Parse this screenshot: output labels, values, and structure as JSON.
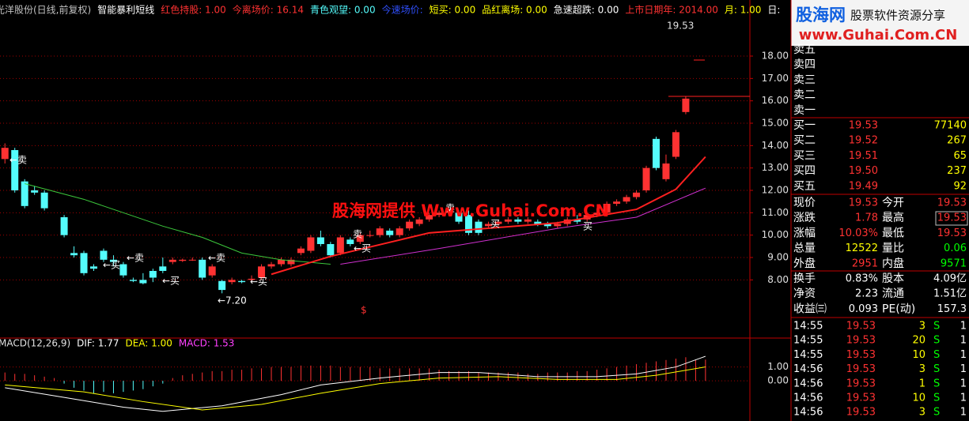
{
  "header": {
    "items": [
      "光洋股份(日线,前复权)",
      "智能暴利短线",
      "红色持股: 1.00",
      "今离场价: 16.14",
      "青色观望: 0.00",
      "今速场价:",
      "短买: 0.00",
      "品红离场: 0.00",
      "急速超跌: 0.00",
      "上市日期年: 2014.00",
      "月: 1.00",
      "日:"
    ]
  },
  "chart_data": [
    {
      "type": "candlestick",
      "up_color": "#ff3232",
      "down_color": "#54fcfc",
      "grid": true,
      "xlim": [
        -0.5,
        75.5
      ],
      "ylim": [
        5.4,
        19.8
      ],
      "yticks": [
        {
          "value": 8,
          "label": "8.00"
        },
        {
          "value": 9,
          "label": "9.00"
        },
        {
          "value": 10,
          "label": "10.00"
        },
        {
          "value": 11,
          "label": "11.00"
        },
        {
          "value": 12,
          "label": "12.00"
        },
        {
          "value": 13,
          "label": "13.00"
        },
        {
          "value": 14,
          "label": "14.00"
        },
        {
          "value": 15,
          "label": "15.00"
        },
        {
          "value": 16,
          "label": "16.00"
        },
        {
          "value": 17,
          "label": "17.00"
        },
        {
          "value": 18,
          "label": "18.00"
        }
      ],
      "x": [
        0,
        1,
        2,
        3,
        4,
        6,
        7,
        8,
        9,
        10,
        11,
        12,
        13,
        14,
        15,
        16,
        17,
        18,
        19,
        20,
        21,
        22,
        23,
        24,
        25,
        26,
        27,
        28,
        29,
        30,
        31,
        32,
        33,
        34,
        35,
        36,
        37,
        38,
        39,
        40,
        41,
        42,
        43,
        44,
        45,
        46,
        47,
        48,
        49,
        50,
        51,
        52,
        53,
        54,
        55,
        56,
        57,
        58,
        59,
        60,
        61,
        62,
        63,
        64,
        65,
        66,
        67,
        68,
        69
      ],
      "open": [
        13.4,
        13.8,
        12.4,
        12.0,
        11.9,
        10.8,
        9.2,
        9.2,
        8.6,
        9.3,
        8.9,
        8.7,
        8.0,
        8.0,
        8.4,
        8.6,
        8.8,
        8.85,
        8.9,
        8.9,
        8.2,
        7.95,
        7.9,
        7.95,
        8.0,
        8.1,
        8.6,
        8.7,
        8.7,
        9.2,
        9.3,
        9.9,
        9.6,
        9.2,
        9.8,
        9.7,
        10.0,
        10.0,
        10.2,
        10.0,
        10.3,
        10.5,
        10.7,
        10.9,
        11.0,
        11.0,
        10.9,
        10.6,
        10.4,
        10.5,
        10.6,
        10.7,
        10.6,
        10.6,
        10.5,
        10.4,
        10.5,
        10.7,
        10.7,
        10.9,
        11.0,
        11.4,
        11.5,
        11.7,
        12.0,
        14.3,
        12.5,
        13.5,
        15.5
      ],
      "close": [
        13.9,
        12.0,
        11.3,
        11.9,
        11.2,
        10.0,
        9.1,
        8.3,
        8.5,
        8.9,
        8.8,
        8.2,
        7.95,
        7.85,
        8.1,
        8.4,
        8.9,
        8.9,
        8.9,
        8.1,
        8.6,
        7.55,
        8.0,
        7.9,
        8.05,
        8.6,
        8.7,
        8.9,
        8.9,
        9.4,
        9.9,
        9.6,
        9.1,
        9.9,
        9.6,
        10.0,
        10.0,
        10.3,
        10.0,
        10.3,
        10.6,
        10.7,
        10.9,
        11.0,
        11.1,
        10.6,
        10.1,
        10.1,
        10.5,
        10.6,
        10.7,
        10.6,
        10.7,
        10.5,
        10.4,
        10.5,
        10.7,
        10.6,
        10.9,
        11.0,
        11.4,
        11.5,
        11.7,
        11.9,
        13.0,
        13.0,
        13.2,
        14.6,
        16.1
      ],
      "high": [
        14.1,
        13.9,
        12.5,
        12.2,
        12.0,
        10.9,
        9.5,
        9.3,
        8.7,
        9.4,
        9.1,
        8.8,
        8.1,
        8.3,
        8.5,
        9.0,
        9.0,
        8.95,
        9.0,
        9.0,
        8.7,
        8.0,
        8.1,
        8.0,
        8.2,
        8.7,
        8.8,
        9.0,
        9.0,
        9.5,
        10.0,
        10.2,
        9.7,
        10.0,
        9.9,
        10.1,
        10.2,
        10.4,
        10.3,
        10.4,
        10.7,
        10.8,
        11.0,
        11.1,
        11.2,
        11.1,
        11.1,
        10.7,
        10.6,
        10.7,
        10.8,
        10.8,
        10.8,
        10.7,
        10.6,
        10.6,
        10.8,
        10.9,
        11.0,
        11.2,
        11.5,
        11.6,
        11.8,
        12.0,
        13.1,
        14.4,
        13.6,
        14.7,
        16.2
      ],
      "low": [
        13.2,
        11.9,
        11.2,
        11.8,
        11.1,
        9.9,
        9.0,
        8.2,
        8.4,
        8.8,
        8.6,
        8.1,
        7.9,
        7.8,
        7.9,
        8.3,
        8.7,
        8.8,
        8.85,
        8.0,
        8.1,
        7.4,
        7.8,
        7.85,
        7.9,
        8.0,
        8.5,
        8.6,
        8.6,
        9.1,
        9.2,
        9.5,
        9.0,
        9.1,
        9.5,
        9.6,
        9.9,
        9.9,
        9.9,
        9.9,
        10.2,
        10.4,
        10.6,
        10.8,
        10.9,
        10.5,
        10.0,
        10.0,
        10.3,
        10.4,
        10.5,
        10.5,
        10.5,
        10.4,
        10.3,
        10.3,
        10.4,
        10.5,
        10.6,
        10.8,
        10.9,
        11.3,
        11.4,
        11.6,
        11.9,
        12.9,
        12.4,
        13.4,
        15.4
      ],
      "lines": [
        {
          "color": "#3cc83c",
          "x": [
            2,
            8,
            12,
            16,
            20,
            24,
            28,
            33
          ],
          "values": [
            12.3,
            11.6,
            11.0,
            10.4,
            9.9,
            9.2,
            8.9,
            8.7
          ]
        },
        {
          "color": "#ff2020",
          "x": [
            27,
            33,
            43,
            56,
            64,
            68,
            71
          ],
          "values": [
            8.25,
            9.05,
            10.1,
            10.55,
            11.15,
            12.05,
            13.5
          ]
        },
        {
          "color": "#d030d0",
          "x": [
            34,
            44,
            56,
            64,
            71
          ],
          "values": [
            8.7,
            9.4,
            10.3,
            10.8,
            12.1
          ]
        }
      ],
      "annotations": [
        "←卖",
        "←买",
        "←卖",
        "←买",
        "←卖",
        "←买",
        "←7.20",
        "卖",
        "←买",
        "卖",
        "买",
        "买",
        "19.53",
        "$"
      ],
      "watermark": "股海网提供 Www.Guhai.Com.CN"
    },
    {
      "type": "macd",
      "title": "MACD(12,26,9)",
      "grid": true,
      "xlim": [
        -0.5,
        75.5
      ],
      "ylim": [
        -2.9,
        2.4
      ],
      "yticks": [
        {
          "value": 0,
          "label": "0.00"
        },
        {
          "value": 1,
          "label": "1.00"
        }
      ],
      "up_color": "#ff3232",
      "down_color": "#54fcfc",
      "bars": {
        "name": "MACD: 1.53",
        "color": "#ff40ff",
        "x": [
          0,
          1,
          2,
          3,
          4,
          5,
          6,
          7,
          8,
          9,
          10,
          11,
          12,
          13,
          14,
          15,
          16,
          17,
          18,
          19,
          20,
          21,
          22,
          23,
          24,
          25,
          26,
          27,
          28,
          29,
          30,
          31,
          32,
          33,
          34,
          35,
          36,
          37,
          38,
          39,
          40,
          41,
          42,
          43,
          44,
          45,
          46,
          47,
          48,
          49,
          50,
          51,
          52,
          53,
          54,
          55,
          56,
          57,
          58,
          59,
          60,
          61,
          62,
          63,
          64,
          65,
          66,
          67,
          68,
          69,
          70,
          71
        ],
        "values": [
          0.6,
          0.5,
          0.5,
          0.4,
          0.3,
          0.2,
          -0.2,
          -0.5,
          -0.7,
          -0.9,
          -0.8,
          -0.9,
          -0.8,
          -0.7,
          -0.6,
          -0.4,
          -0.2,
          0.2,
          0.4,
          0.5,
          0.6,
          0.7,
          0.7,
          0.8,
          0.8,
          0.9,
          0.9,
          1.0,
          1.0,
          1.0,
          1.1,
          1.1,
          1.1,
          1.1,
          1.0,
          1.0,
          1.0,
          1.0,
          0.9,
          0.9,
          0.9,
          0.9,
          0.9,
          0.9,
          0.8,
          0.7,
          0.7,
          0.7,
          0.6,
          0.6,
          0.6,
          0.6,
          0.6,
          0.5,
          0.5,
          0.6,
          0.6,
          0.6,
          0.7,
          0.7,
          0.8,
          0.9,
          1.0,
          1.1,
          1.2,
          1.3,
          1.4,
          1.5,
          1.6,
          1.7,
          1.5,
          1.53
        ]
      },
      "series": [
        {
          "name": "DIF: 1.77",
          "color": "#ffffff",
          "x": [
            0,
            6,
            12,
            16,
            22,
            28,
            32,
            38,
            44,
            48,
            54,
            60,
            64,
            68,
            71
          ],
          "values": [
            -0.5,
            -1.2,
            -1.9,
            -2.2,
            -1.8,
            -1.0,
            -0.3,
            0.2,
            0.6,
            0.6,
            0.3,
            0.3,
            0.5,
            1.0,
            1.77
          ]
        },
        {
          "name": "DEA: 1.00",
          "color": "#ffff00",
          "x": [
            0,
            8,
            14,
            20,
            26,
            32,
            38,
            44,
            50,
            56,
            62,
            66,
            71
          ],
          "values": [
            -0.3,
            -0.8,
            -1.5,
            -2.1,
            -1.7,
            -0.9,
            -0.2,
            0.2,
            0.3,
            0.1,
            0.1,
            0.4,
            1.0
          ]
        }
      ]
    }
  ],
  "logo": {
    "brand": "股海网",
    "slogan": "股票软件资源分享",
    "url": "www.Guhai.Com.CN"
  },
  "order_book": {
    "asks": [
      "卖五",
      "卖四",
      "卖三",
      "卖二",
      "卖一"
    ],
    "bids": [
      [
        "买一",
        "19.53",
        "77140"
      ],
      [
        "买二",
        "19.52",
        "267"
      ],
      [
        "买三",
        "19.51",
        "65"
      ],
      [
        "买四",
        "19.50",
        "237"
      ],
      [
        "买五",
        "19.49",
        "92"
      ]
    ]
  },
  "quote": {
    "rows": [
      [
        "现价",
        "19.53",
        "今开",
        "19.53"
      ],
      [
        "涨跌",
        "1.78",
        "最高",
        "19.53"
      ],
      [
        "涨幅",
        "10.03%",
        "最低",
        "19.53"
      ],
      [
        "总量",
        "12522",
        "量比",
        "0.06"
      ],
      [
        "外盘",
        "2951",
        "内盘",
        "9571"
      ],
      [
        "换手",
        "0.83%",
        "股本",
        "4.09亿"
      ],
      [
        "净资",
        "2.23",
        "流通",
        "1.51亿"
      ],
      [
        "收益㈢",
        "0.093",
        "PE(动)",
        "157.3"
      ]
    ]
  },
  "trades": {
    "rows": [
      [
        "14:55",
        "19.53",
        "3",
        "S",
        "1"
      ],
      [
        "14:55",
        "19.53",
        "20",
        "S",
        "1"
      ],
      [
        "14:55",
        "19.53",
        "10",
        "S",
        "1"
      ],
      [
        "14:56",
        "19.53",
        "3",
        "S",
        "1"
      ],
      [
        "14:56",
        "19.53",
        "1",
        "S",
        "1"
      ],
      [
        "14:56",
        "19.53",
        "10",
        "S",
        "1"
      ],
      [
        "14:56",
        "19.53",
        "3",
        "S",
        "1"
      ]
    ]
  }
}
